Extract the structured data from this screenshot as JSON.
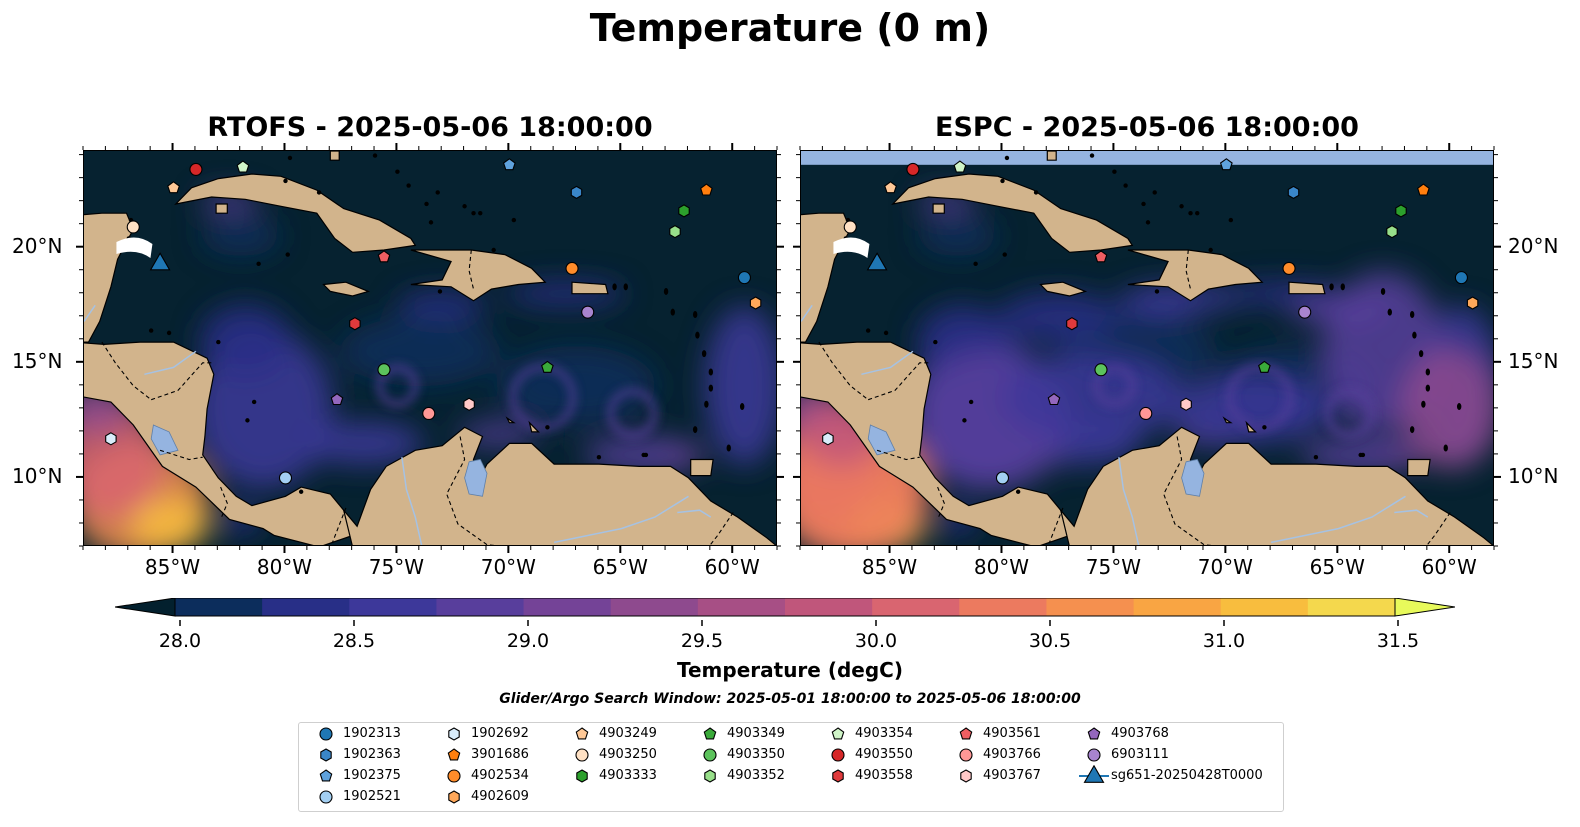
{
  "title": "Temperature (0 m)",
  "panels": [
    {
      "id": "rtofs",
      "title": "RTOFS - 2025-05-06 18:00:00"
    },
    {
      "id": "espc",
      "title": "ESPC - 2025-05-06 18:00:00"
    }
  ],
  "axes": {
    "lon_ticks": [
      "85°W",
      "80°W",
      "75°W",
      "70°W",
      "65°W",
      "60°W"
    ],
    "lon_values": [
      -85,
      -80,
      -75,
      -70,
      -65,
      -60
    ],
    "lat_ticks": [
      "20°N",
      "15°N",
      "10°N"
    ],
    "lat_values": [
      20,
      15,
      10
    ],
    "lon_range": [
      -89,
      -58
    ],
    "lat_range": [
      7,
      24.2
    ]
  },
  "colorbar": {
    "label": "Temperature (degC)",
    "ticks": [
      "28.0",
      "28.5",
      "29.0",
      "29.5",
      "30.0",
      "30.5",
      "31.0",
      "31.5"
    ],
    "range": [
      28.0,
      31.5
    ],
    "extend": "both",
    "colors": [
      "#03202e",
      "#0c2d5c",
      "#282f87",
      "#3d389a",
      "#583e9c",
      "#744397",
      "#8e4a8e",
      "#a74f85",
      "#c0567b",
      "#d96570",
      "#ec7a5f",
      "#f5904f",
      "#f9a543",
      "#f8bd3e",
      "#f4d84d",
      "#e8fa5b"
    ]
  },
  "colors": {
    "land": "#d2b48c",
    "lake": "#95b4e0",
    "river": "#a6c2e3",
    "ocean_base": "#062230"
  },
  "search_window": "Glider/Argo Search Window: 2025-05-01 18:00:00 to 2025-05-06 18:00:00",
  "legend": [
    {
      "id": "1902313",
      "marker": "circle",
      "color": "#1f77b4"
    },
    {
      "id": "1902363",
      "marker": "hexagon",
      "color": "#3a86c8"
    },
    {
      "id": "1902375",
      "marker": "pentagon",
      "color": "#5fa2dd"
    },
    {
      "id": "1902521",
      "marker": "circle",
      "color": "#a3cff2"
    },
    {
      "id": "1902692",
      "marker": "hexagon",
      "color": "#d9ecfa"
    },
    {
      "id": "3901686",
      "marker": "pentagon",
      "color": "#ff7f0e"
    },
    {
      "id": "4902534",
      "marker": "circle",
      "color": "#ff8c2a"
    },
    {
      "id": "4902609",
      "marker": "hexagon",
      "color": "#ffa85a"
    },
    {
      "id": "4903249",
      "marker": "pentagon",
      "color": "#ffc896"
    },
    {
      "id": "4903250",
      "marker": "circle",
      "color": "#ffe1c4"
    },
    {
      "id": "4903333",
      "marker": "hexagon",
      "color": "#2ca02c"
    },
    {
      "id": "4903349",
      "marker": "pentagon",
      "color": "#3aaa3a"
    },
    {
      "id": "4903350",
      "marker": "circle",
      "color": "#5cc35c"
    },
    {
      "id": "4903352",
      "marker": "hexagon",
      "color": "#98df8a"
    },
    {
      "id": "4903354",
      "marker": "pentagon",
      "color": "#d0f5c8"
    },
    {
      "id": "4903550",
      "marker": "circle",
      "color": "#d62728"
    },
    {
      "id": "4903558",
      "marker": "hexagon",
      "color": "#e03a3c"
    },
    {
      "id": "4903561",
      "marker": "pentagon",
      "color": "#ef5e62"
    },
    {
      "id": "4903766",
      "marker": "circle",
      "color": "#ff9896"
    },
    {
      "id": "4903767",
      "marker": "hexagon",
      "color": "#ffc9c8"
    },
    {
      "id": "4903768",
      "marker": "pentagon",
      "color": "#9467bd"
    },
    {
      "id": "6903111",
      "marker": "circle",
      "color": "#a884cf"
    },
    {
      "id": "sg651-20250428T0000",
      "marker": "triangle",
      "color": "#1f77b4"
    }
  ],
  "floats": [
    {
      "id": "4903550",
      "lon": -84.0,
      "lat": 23.4
    },
    {
      "id": "4903354",
      "lon": -81.9,
      "lat": 23.5
    },
    {
      "id": "1902375",
      "lon": -70.0,
      "lat": 23.6
    },
    {
      "id": "4903249",
      "lon": -85.0,
      "lat": 22.6
    },
    {
      "id": "1902363",
      "lon": -67.0,
      "lat": 22.4
    },
    {
      "id": "3901686",
      "lon": -61.2,
      "lat": 22.5
    },
    {
      "id": "4903333",
      "lon": -62.2,
      "lat": 21.6
    },
    {
      "id": "4903352",
      "lon": -62.6,
      "lat": 20.7
    },
    {
      "id": "4903250",
      "lon": -86.8,
      "lat": 20.9
    },
    {
      "id": "4903561",
      "lon": -75.6,
      "lat": 19.6
    },
    {
      "id": "4902534",
      "lon": -67.2,
      "lat": 19.1
    },
    {
      "id": "1902313",
      "lon": -59.5,
      "lat": 18.7
    },
    {
      "id": "4902609",
      "lon": -59.0,
      "lat": 17.6
    },
    {
      "id": "6903111",
      "lon": -66.5,
      "lat": 17.2
    },
    {
      "id": "4903558",
      "lon": -76.9,
      "lat": 16.7
    },
    {
      "id": "4903350",
      "lon": -75.6,
      "lat": 14.7
    },
    {
      "id": "4903349",
      "lon": -68.3,
      "lat": 14.8
    },
    {
      "id": "4903768",
      "lon": -77.7,
      "lat": 13.4
    },
    {
      "id": "4903766",
      "lon": -73.6,
      "lat": 12.8
    },
    {
      "id": "4903767",
      "lon": -71.8,
      "lat": 13.2
    },
    {
      "id": "1902692",
      "lon": -87.8,
      "lat": 11.7
    },
    {
      "id": "1902521",
      "lon": -80.0,
      "lat": 10.0
    }
  ],
  "glider": {
    "id": "sg651-20250428T0000",
    "lon": -85.6,
    "lat": 19.4
  }
}
